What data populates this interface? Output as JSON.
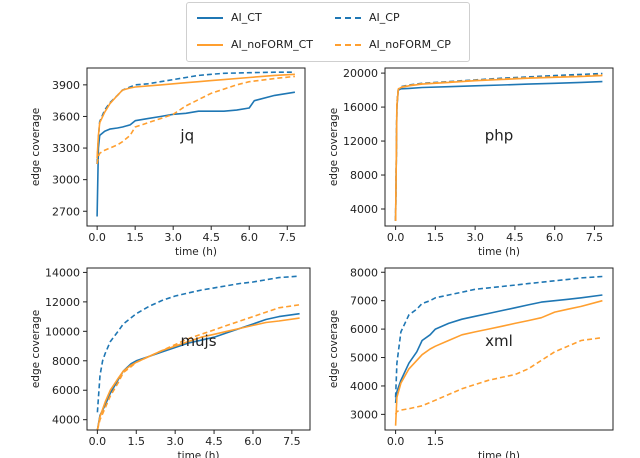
{
  "legend": {
    "items": [
      {
        "label": "AI_CT",
        "color": "#1f77b4",
        "dash": false
      },
      {
        "label": "AI_CP",
        "color": "#1f77b4",
        "dash": true
      },
      {
        "label": "AI_noFORM_CT",
        "color": "#ff9f2f",
        "dash": false
      },
      {
        "label": "AI_noFORM_CP",
        "color": "#ff9f2f",
        "dash": true
      }
    ]
  },
  "chart_data": [
    {
      "type": "line",
      "name": "jq",
      "xlabel": "time (h)",
      "ylabel": "edge coverage",
      "xlim": [
        -0.4,
        8.2
      ],
      "ylim": [
        2560,
        4060
      ],
      "xticks": [
        "0.0",
        "1.5",
        "3.0",
        "4.5",
        "6.0",
        "7.5"
      ],
      "yticks": [
        "2700",
        "3000",
        "3300",
        "3600",
        "3900"
      ],
      "series": [
        {
          "name": "AI_CT",
          "x": [
            0,
            0.05,
            0.1,
            0.3,
            0.5,
            0.8,
            1.0,
            1.3,
            1.5,
            2.0,
            2.5,
            3.0,
            3.5,
            4.0,
            4.5,
            5.0,
            5.5,
            6.0,
            6.2,
            7.0,
            7.8
          ],
          "y": [
            2650,
            3300,
            3420,
            3460,
            3480,
            3490,
            3500,
            3520,
            3560,
            3580,
            3600,
            3620,
            3630,
            3650,
            3650,
            3650,
            3660,
            3680,
            3750,
            3800,
            3830
          ]
        },
        {
          "name": "AI_CP",
          "x": [
            0,
            0.05,
            0.1,
            0.3,
            0.5,
            0.8,
            1.0,
            1.3,
            1.5,
            2.0,
            2.5,
            3.0,
            3.5,
            4.0,
            4.5,
            5.0,
            6.0,
            7.0,
            7.8
          ],
          "y": [
            3150,
            3400,
            3550,
            3660,
            3730,
            3800,
            3850,
            3880,
            3900,
            3910,
            3930,
            3950,
            3970,
            3990,
            4000,
            4010,
            4015,
            4020,
            4020
          ]
        },
        {
          "name": "AI_noFORM_CT",
          "x": [
            0,
            0.05,
            0.1,
            0.3,
            0.5,
            0.8,
            1.0,
            1.3,
            1.5,
            2.0,
            2.5,
            3.0,
            3.5,
            4.0,
            4.5,
            5.0,
            6.0,
            7.0,
            7.8
          ],
          "y": [
            3200,
            3420,
            3540,
            3640,
            3720,
            3800,
            3850,
            3870,
            3880,
            3890,
            3900,
            3910,
            3920,
            3930,
            3940,
            3950,
            3970,
            3990,
            4000
          ]
        },
        {
          "name": "AI_noFORM_CP",
          "x": [
            0,
            0.05,
            0.1,
            0.3,
            0.5,
            0.8,
            1.0,
            1.3,
            1.5,
            2.0,
            2.5,
            3.0,
            3.5,
            4.0,
            4.5,
            5.0,
            5.5,
            6.0,
            7.0,
            7.8
          ],
          "y": [
            3150,
            3220,
            3250,
            3280,
            3300,
            3330,
            3360,
            3420,
            3500,
            3540,
            3580,
            3620,
            3700,
            3760,
            3820,
            3860,
            3900,
            3930,
            3960,
            3980
          ]
        }
      ]
    },
    {
      "type": "line",
      "name": "php",
      "xlabel": "time (h)",
      "ylabel": "edge coverage",
      "xlim": [
        -0.4,
        8.2
      ],
      "ylim": [
        2000,
        20600
      ],
      "xticks": [
        "0.0",
        "1.5",
        "3.0",
        "4.5",
        "6.0",
        "7.5"
      ],
      "yticks": [
        "4000",
        "8000",
        "12000",
        "16000",
        "20000"
      ],
      "series": [
        {
          "name": "AI_CT",
          "x": [
            0,
            0.05,
            0.1,
            0.2,
            0.5,
            1.0,
            2.0,
            3.0,
            4.0,
            5.0,
            6.0,
            7.0,
            7.8
          ],
          "y": [
            2600,
            16000,
            18000,
            18150,
            18200,
            18300,
            18400,
            18500,
            18600,
            18700,
            18800,
            18900,
            19000
          ]
        },
        {
          "name": "AI_CP",
          "x": [
            0,
            0.05,
            0.1,
            0.2,
            0.5,
            1.0,
            2.0,
            3.0,
            4.0,
            5.0,
            6.0,
            7.0,
            7.8
          ],
          "y": [
            2600,
            16500,
            18100,
            18400,
            18600,
            18800,
            19000,
            19200,
            19400,
            19550,
            19700,
            19850,
            19950
          ]
        },
        {
          "name": "AI_noFORM_CT",
          "x": [
            0,
            0.05,
            0.1,
            0.2,
            0.5,
            1.0,
            2.0,
            3.0,
            4.0,
            5.0,
            6.0,
            7.0,
            7.8
          ],
          "y": [
            2600,
            16200,
            18100,
            18300,
            18500,
            18700,
            18900,
            19100,
            19250,
            19400,
            19500,
            19600,
            19700
          ]
        },
        {
          "name": "AI_noFORM_CP",
          "x": [
            0,
            0.05,
            0.1,
            0.2,
            0.5,
            1.0,
            2.0,
            3.0,
            4.0,
            5.0,
            6.0,
            7.0,
            7.8
          ],
          "y": [
            2600,
            16300,
            18100,
            18350,
            18550,
            18750,
            18950,
            19150,
            19300,
            19450,
            19550,
            19650,
            19800
          ]
        }
      ]
    },
    {
      "type": "line",
      "name": "mujs",
      "xlabel": "time (h)",
      "ylabel": "edge coverage",
      "xlim": [
        -0.4,
        8.2
      ],
      "ylim": [
        3300,
        14300
      ],
      "xticks": [
        "0.0",
        "1.5",
        "3.0",
        "4.5",
        "6.0",
        "7.5"
      ],
      "yticks": [
        "4000",
        "6000",
        "8000",
        "10000",
        "12000",
        "14000"
      ],
      "series": [
        {
          "name": "AI_CT",
          "x": [
            0,
            0.1,
            0.3,
            0.5,
            0.8,
            1.0,
            1.3,
            1.5,
            2.0,
            2.5,
            3.0,
            3.5,
            4.0,
            4.5,
            5.0,
            5.5,
            6.0,
            6.5,
            7.0,
            7.8
          ],
          "y": [
            3300,
            4300,
            5000,
            5800,
            6700,
            7300,
            7800,
            8000,
            8300,
            8600,
            8900,
            9200,
            9400,
            9600,
            9900,
            10200,
            10500,
            10800,
            11000,
            11200
          ]
        },
        {
          "name": "AI_CP",
          "x": [
            0,
            0.1,
            0.2,
            0.3,
            0.5,
            0.8,
            1.0,
            1.5,
            2.0,
            2.5,
            3.0,
            3.5,
            4.0,
            4.5,
            5.0,
            5.5,
            6.0,
            6.5,
            7.0,
            7.8
          ],
          "y": [
            4500,
            7000,
            8000,
            8500,
            9300,
            10000,
            10500,
            11200,
            11700,
            12100,
            12400,
            12600,
            12800,
            12950,
            13100,
            13250,
            13350,
            13500,
            13650,
            13750
          ]
        },
        {
          "name": "AI_noFORM_CT",
          "x": [
            0,
            0.1,
            0.3,
            0.5,
            0.8,
            1.0,
            1.3,
            1.5,
            2.0,
            2.5,
            3.0,
            3.5,
            4.0,
            4.5,
            5.0,
            5.5,
            6.0,
            6.5,
            7.0,
            7.8
          ],
          "y": [
            3300,
            4200,
            5200,
            6000,
            6800,
            7300,
            7700,
            7900,
            8300,
            8700,
            9000,
            9300,
            9600,
            9800,
            10000,
            10200,
            10400,
            10600,
            10700,
            10900
          ]
        },
        {
          "name": "AI_noFORM_CP",
          "x": [
            0,
            0.1,
            0.3,
            0.5,
            0.8,
            1.0,
            1.3,
            1.5,
            2.0,
            2.5,
            3.0,
            3.5,
            4.0,
            4.5,
            5.0,
            5.5,
            6.0,
            6.5,
            7.0,
            7.8
          ],
          "y": [
            3300,
            4000,
            4800,
            5600,
            6500,
            7200,
            7600,
            7900,
            8300,
            8700,
            9100,
            9500,
            9800,
            10100,
            10400,
            10700,
            11000,
            11300,
            11600,
            11800
          ]
        }
      ]
    },
    {
      "type": "line",
      "name": "xml",
      "xlabel": "time (h)",
      "ylabel": "edge coverage",
      "xlim": [
        -0.4,
        8.2
      ],
      "ylim": [
        2450,
        8150
      ],
      "xticks": [
        "0.0",
        "1.5"
      ],
      "yticks": [
        "3000",
        "4000",
        "5000",
        "6000",
        "7000",
        "8000"
      ],
      "series": [
        {
          "name": "AI_CT",
          "x": [
            0,
            0.05,
            0.2,
            0.5,
            0.8,
            1.0,
            1.3,
            1.5,
            2.0,
            2.5,
            3.0,
            3.5,
            4.0,
            4.5,
            5.0,
            5.5,
            6.0,
            6.5,
            7.0,
            7.8
          ],
          "y": [
            3400,
            3800,
            4200,
            4800,
            5200,
            5600,
            5800,
            6000,
            6200,
            6350,
            6450,
            6550,
            6650,
            6750,
            6850,
            6950,
            7000,
            7050,
            7100,
            7200
          ]
        },
        {
          "name": "AI_CP",
          "x": [
            0,
            0.05,
            0.2,
            0.5,
            0.8,
            1.0,
            1.3,
            1.5,
            2.0,
            2.5,
            3.0,
            3.5,
            4.0,
            4.5,
            5.0,
            5.5,
            6.0,
            6.5,
            7.0,
            7.8
          ],
          "y": [
            3600,
            4800,
            5900,
            6500,
            6700,
            6900,
            7000,
            7100,
            7200,
            7300,
            7400,
            7450,
            7500,
            7550,
            7600,
            7650,
            7700,
            7750,
            7800,
            7850
          ]
        },
        {
          "name": "AI_noFORM_CT",
          "x": [
            0,
            0.05,
            0.2,
            0.5,
            0.8,
            1.0,
            1.3,
            1.5,
            2.0,
            2.5,
            3.0,
            3.5,
            4.0,
            4.5,
            5.0,
            5.5,
            6.0,
            6.5,
            7.0,
            7.8
          ],
          "y": [
            2600,
            3600,
            4100,
            4600,
            4900,
            5100,
            5300,
            5400,
            5600,
            5800,
            5900,
            6000,
            6100,
            6200,
            6300,
            6400,
            6600,
            6700,
            6800,
            7000
          ]
        },
        {
          "name": "AI_noFORM_CP",
          "x": [
            0,
            0.05,
            0.2,
            0.5,
            1.0,
            1.5,
            2.0,
            2.5,
            3.0,
            3.5,
            4.0,
            4.5,
            5.0,
            5.5,
            6.0,
            6.5,
            7.0,
            7.8
          ],
          "y": [
            3000,
            3100,
            3150,
            3200,
            3300,
            3500,
            3700,
            3900,
            4050,
            4200,
            4300,
            4400,
            4600,
            4900,
            5200,
            5400,
            5600,
            5700
          ]
        }
      ]
    }
  ]
}
